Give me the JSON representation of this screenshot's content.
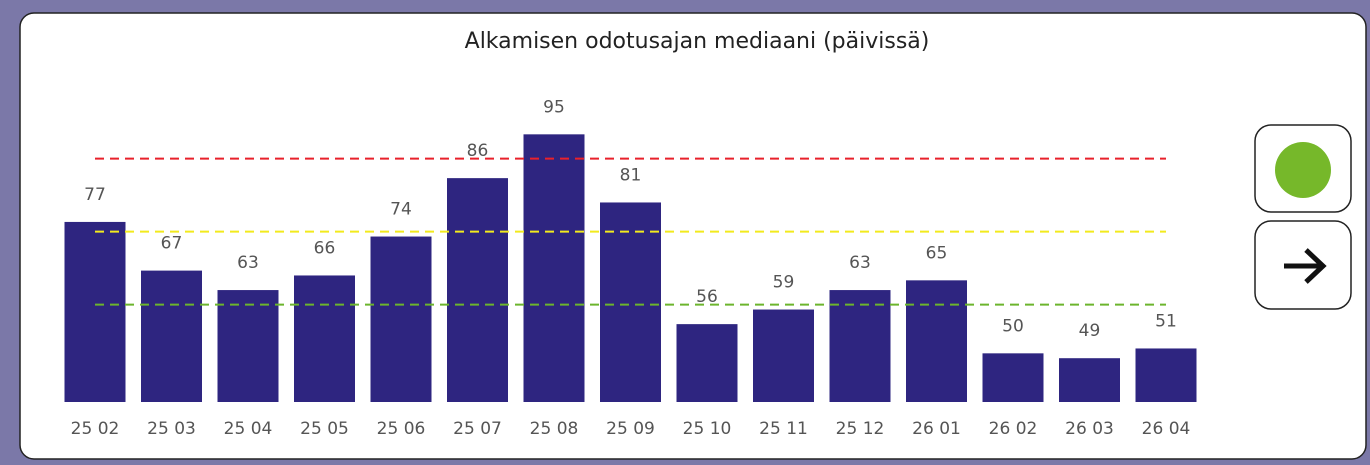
{
  "chart_data": {
    "type": "bar",
    "title": "Alkamisen odotusajan mediaani (päivissä)",
    "categories": [
      "25 02",
      "25 03",
      "25 04",
      "25 05",
      "25 06",
      "25 07",
      "25 08",
      "25 09",
      "25 10",
      "25 11",
      "25 12",
      "26 01",
      "26 02",
      "26 03",
      "26 04"
    ],
    "values": [
      77,
      67,
      63,
      66,
      74,
      86,
      95,
      81,
      56,
      59,
      63,
      65,
      50,
      49,
      51
    ],
    "color": "#2e2580",
    "ylim": [
      40,
      100
    ],
    "reference_lines": [
      {
        "value": 90,
        "color": "#e8212b"
      },
      {
        "value": 75,
        "color": "#f2ea1e"
      },
      {
        "value": 60,
        "color": "#6cb52d"
      }
    ],
    "status_color": "#76b82a"
  }
}
